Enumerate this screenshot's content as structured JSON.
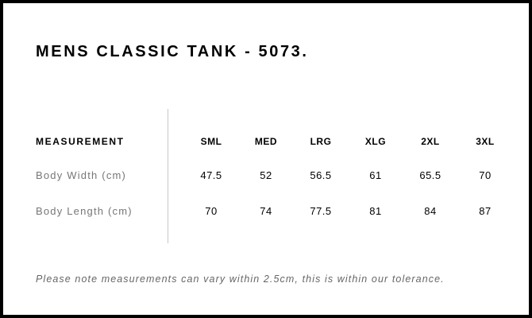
{
  "title": "MENS CLASSIC TANK - 5073.",
  "table": {
    "header": "MEASUREMENT",
    "sizes": [
      "SML",
      "MED",
      "LRG",
      "XLG",
      "2XL",
      "3XL"
    ],
    "rows": [
      {
        "label": "Body Width (cm)",
        "values": [
          "47.5",
          "52",
          "56.5",
          "61",
          "65.5",
          "70"
        ]
      },
      {
        "label": "Body Length (cm)",
        "values": [
          "70",
          "74",
          "77.5",
          "81",
          "84",
          "87"
        ]
      }
    ]
  },
  "note": "Please note measurements can vary within 2.5cm, this is within our tolerance."
}
